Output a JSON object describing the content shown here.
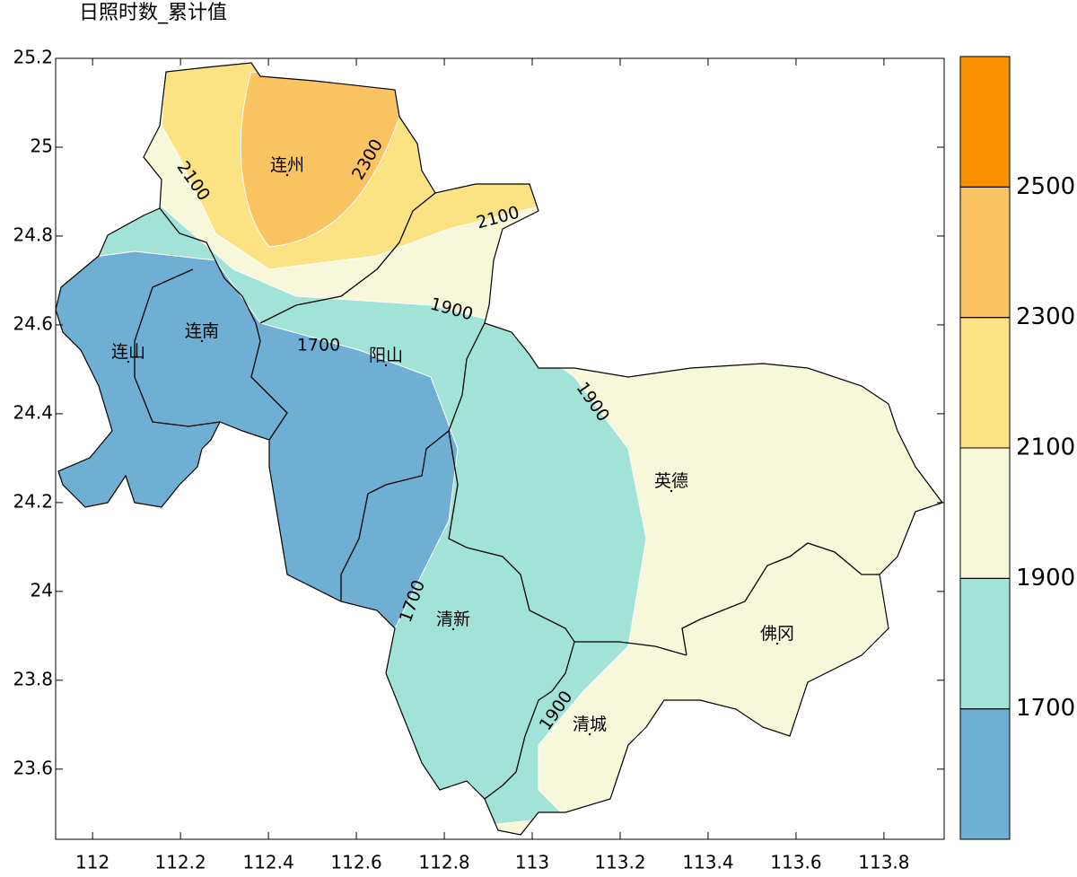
{
  "title": "日照时数_累计值",
  "xaxis": {
    "lim": [
      111.916,
      113.937
    ],
    "ticks": [
      112,
      112.2,
      112.4,
      112.6,
      112.8,
      113,
      113.2,
      113.4,
      113.6,
      113.8
    ]
  },
  "yaxis": {
    "lim": [
      23.442,
      25.2
    ],
    "ticks": [
      23.6,
      23.8,
      24,
      24.2,
      24.4,
      24.6,
      24.8,
      25,
      25.2
    ]
  },
  "colorbar": {
    "lim": [
      1500,
      2700
    ],
    "levels": [
      1700,
      1900,
      2100,
      2300,
      2500
    ],
    "colors": [
      "#6fafd3",
      "#a2e3d8",
      "#f7f7d9",
      "#fbe283",
      "#fbc462",
      "#f99203"
    ]
  },
  "cities": [
    "连州",
    "连南",
    "连山",
    "阳山",
    "英德",
    "清新",
    "佛冈",
    "清城"
  ],
  "contour_labels": [
    2100,
    2300,
    2100,
    1900,
    1700,
    1900,
    1700,
    1900
  ]
}
